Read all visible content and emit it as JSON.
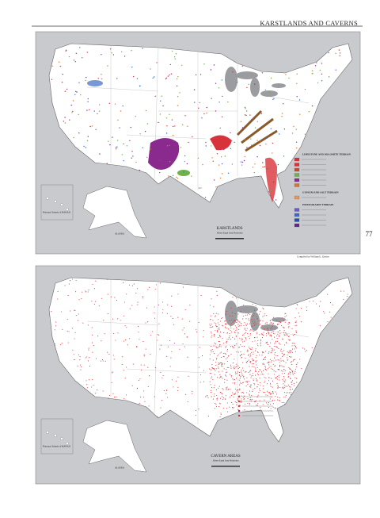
{
  "header": {
    "title": "KARSTLANDS AND CAVERNS",
    "page_number": "77"
  },
  "maps": [
    {
      "title": "KARSTLANDS",
      "projection": "Albers Equal Area Projection",
      "inset_labels": [
        "Principal Islands of HAWAII",
        "ALASKA"
      ],
      "legend": [
        "LIMESTONE AND DOLOMITE TERRAIN",
        "GYPSUM AND SALT TERRAIN",
        "PSEUDOKARST TERRAIN"
      ]
    },
    {
      "title": "CAVERN AREAS",
      "projection": "Albers Equal Area Projection",
      "inset_labels": [
        "Principal Islands of HAWAII",
        "ALASKA"
      ]
    }
  ],
  "credit": "Compiled by William E. Davies"
}
